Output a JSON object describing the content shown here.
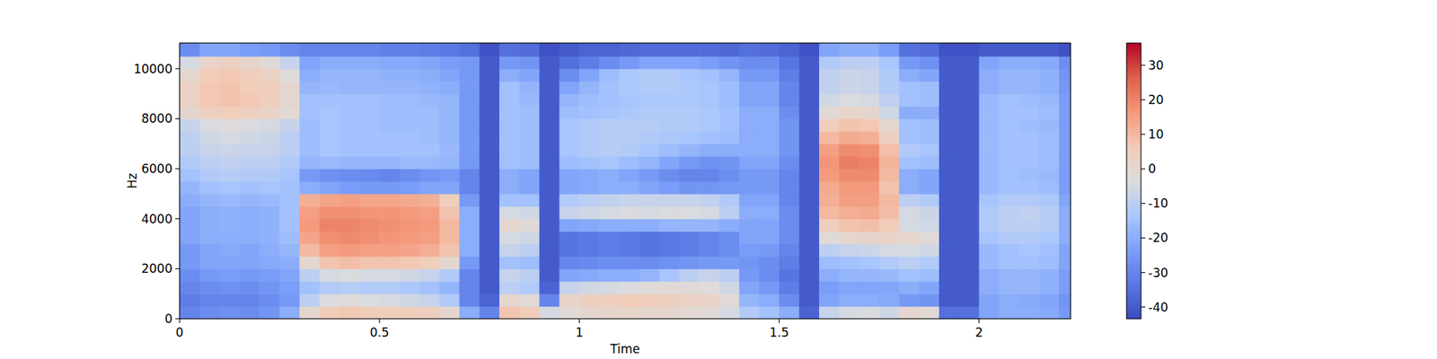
{
  "chart_data": {
    "type": "heatmap",
    "x_label": "Time",
    "y_label": "Hz",
    "xlim": [
      0,
      2.229
    ],
    "ylim": [
      0,
      11025
    ],
    "xticks": [
      0,
      0.5,
      1,
      1.5,
      2
    ],
    "yticks": [
      0,
      2000,
      4000,
      6000,
      8000,
      10000
    ],
    "colorbar_lim": [
      -43.4,
      36.4
    ],
    "colorbar_ticks": [
      -40,
      -30,
      -20,
      -10,
      0,
      10,
      20,
      30
    ],
    "x_edges": [
      0,
      0.05,
      0.1,
      0.15,
      0.2,
      0.25,
      0.3,
      0.35,
      0.4,
      0.45,
      0.5,
      0.55,
      0.6,
      0.65,
      0.7,
      0.75,
      0.8,
      0.85,
      0.9,
      0.95,
      1,
      1.05,
      1.1,
      1.15,
      1.2,
      1.25,
      1.3,
      1.35,
      1.4,
      1.45,
      1.5,
      1.55,
      1.6,
      1.65,
      1.7,
      1.75,
      1.8,
      1.85,
      1.9,
      1.95,
      2,
      2.05,
      2.1,
      2.15,
      2.2,
      2.25
    ],
    "y_edges": [
      0,
      500,
      1000,
      1500,
      2000,
      2500,
      3000,
      3500,
      4000,
      4500,
      5000,
      5500,
      6000,
      6500,
      7000,
      7500,
      8000,
      8500,
      9000,
      9500,
      10000,
      10500,
      11025
    ],
    "cells": [
      [
        -30,
        -32,
        -30,
        -28,
        -25,
        -25,
        -22,
        -22,
        -22,
        -20,
        -18,
        -15,
        -12,
        -10,
        -10,
        -8,
        0,
        3,
        3,
        0,
        -5,
        -28
      ],
      [
        -28,
        -30,
        -28,
        -25,
        -22,
        -22,
        -20,
        -20,
        -20,
        -18,
        -15,
        -12,
        -10,
        -8,
        -6,
        -4,
        4,
        7,
        7,
        6,
        2,
        -22
      ],
      [
        -27,
        -30,
        -27,
        -24,
        -22,
        -21,
        -20,
        -19,
        -19,
        -17,
        -14,
        -11,
        -9,
        -7,
        -5,
        -3,
        5,
        8,
        8,
        7,
        3,
        -22
      ],
      [
        -28,
        -30,
        -28,
        -25,
        -22,
        -22,
        -20,
        -20,
        -20,
        -18,
        -15,
        -12,
        -10,
        -8,
        -6,
        -4,
        4,
        7,
        6,
        5,
        1,
        -24
      ],
      [
        -26,
        -28,
        -26,
        -24,
        -21,
        -20,
        -19,
        -19,
        -19,
        -17,
        -14,
        -12,
        -10,
        -8,
        -7,
        -5,
        2,
        5,
        5,
        3,
        -2,
        -25
      ],
      [
        -20,
        -25,
        -24,
        -22,
        -20,
        -18,
        -16,
        -15,
        -15,
        -15,
        -15,
        -14,
        -12,
        -10,
        -10,
        -8,
        -2,
        0,
        0,
        -3,
        -8,
        -28
      ],
      [
        0,
        -10,
        -15,
        -10,
        0,
        10,
        14,
        16,
        15,
        12,
        -20,
        -25,
        -18,
        -16,
        -16,
        -16,
        -15,
        -15,
        -18,
        -20,
        -22,
        -30
      ],
      [
        6,
        -4,
        -12,
        -5,
        8,
        15,
        18,
        20,
        18,
        14,
        -22,
        -27,
        -17,
        -14,
        -14,
        -14,
        -14,
        -15,
        -17,
        -18,
        -20,
        -30
      ],
      [
        7,
        -3,
        -11,
        -4,
        9,
        16,
        19,
        20,
        18,
        15,
        -24,
        -28,
        -18,
        -15,
        -15,
        -15,
        -15,
        -15,
        -18,
        -18,
        -20,
        -30
      ],
      [
        6,
        -4,
        -12,
        -5,
        8,
        15,
        18,
        19,
        17,
        14,
        -25,
        -29,
        -18,
        -15,
        -15,
        -15,
        -15,
        -15,
        -18,
        -18,
        -20,
        -30
      ],
      [
        5,
        -5,
        -12,
        -5,
        8,
        15,
        17,
        18,
        17,
        14,
        -25,
        -30,
        -18,
        -15,
        -15,
        -16,
        -16,
        -16,
        -18,
        -19,
        -21,
        -31
      ],
      [
        5,
        -6,
        -13,
        -6,
        7,
        14,
        16,
        17,
        16,
        13,
        -24,
        -28,
        -17,
        -15,
        -15,
        -16,
        -16,
        -16,
        -18,
        -19,
        -21,
        -31
      ],
      [
        4,
        -8,
        -15,
        -8,
        5,
        12,
        15,
        16,
        15,
        12,
        -22,
        -26,
        -17,
        -15,
        -16,
        -16,
        -16,
        -17,
        -19,
        -20,
        -22,
        -32
      ],
      [
        0,
        -12,
        -18,
        -12,
        0,
        8,
        10,
        10,
        8,
        5,
        -22,
        -25,
        -18,
        -17,
        -18,
        -18,
        -18,
        -18,
        -20,
        -22,
        -24,
        -33
      ],
      [
        -20,
        -30,
        -30,
        -30,
        -25,
        -20,
        -20,
        -20,
        -20,
        -25,
        -30,
        -30,
        -25,
        -25,
        -25,
        -25,
        -25,
        -25,
        -25,
        -25,
        -25,
        -35
      ],
      [
        -30,
        -38,
        -40,
        -40,
        -40,
        -40,
        -40,
        -40,
        -40,
        -40,
        -40,
        -40,
        -40,
        -40,
        -40,
        -40,
        -40,
        -40,
        -40,
        -40,
        -40,
        -42
      ],
      [
        8,
        0,
        -10,
        -8,
        -15,
        -8,
        -5,
        0,
        -5,
        -15,
        -20,
        -20,
        -15,
        -15,
        -15,
        -15,
        -15,
        -15,
        -15,
        -20,
        -25,
        -35
      ],
      [
        6,
        -2,
        -12,
        -10,
        -16,
        -10,
        -6,
        -2,
        -6,
        -15,
        -22,
        -22,
        -16,
        -16,
        -16,
        -16,
        -16,
        -17,
        -18,
        -22,
        -26,
        -36
      ],
      [
        -5,
        -30,
        -38,
        -40,
        -40,
        -40,
        -40,
        -40,
        -40,
        -40,
        -40,
        -40,
        -40,
        -40,
        -40,
        -40,
        -40,
        -40,
        -40,
        -40,
        -40,
        -42
      ],
      [
        -2,
        2,
        -8,
        -22,
        -30,
        -34,
        -34,
        -22,
        -8,
        -12,
        -22,
        -22,
        -16,
        -14,
        -14,
        -14,
        -16,
        -18,
        -22,
        -28,
        -35,
        -40
      ],
      [
        0,
        4,
        -6,
        -21,
        -29,
        -33,
        -33,
        -21,
        -6,
        -10,
        -21,
        -21,
        -15,
        -12,
        -12,
        -12,
        -15,
        -16,
        -18,
        -22,
        -32,
        -38
      ],
      [
        1,
        5,
        -5,
        -20,
        -28,
        -32,
        -32,
        -20,
        -5,
        -9,
        -20,
        -20,
        -14,
        -11,
        -11,
        -11,
        -14,
        -15,
        -15,
        -16,
        -28,
        -38
      ],
      [
        1,
        6,
        -4,
        -20,
        -28,
        -33,
        -33,
        -20,
        -4,
        -8,
        -20,
        -22,
        -16,
        -12,
        -11,
        -11,
        -13,
        -14,
        -13,
        -13,
        -25,
        -37
      ],
      [
        0,
        5,
        -3,
        -18,
        -28,
        -34,
        -34,
        -20,
        -5,
        -8,
        -22,
        -25,
        -18,
        -14,
        -12,
        -11,
        -12,
        -13,
        -12,
        -12,
        -22,
        -36
      ],
      [
        0,
        4,
        -2,
        -14,
        -27,
        -33,
        -33,
        -18,
        -4,
        -8,
        -24,
        -28,
        -22,
        -16,
        -13,
        -12,
        -12,
        -13,
        -12,
        -12,
        -22,
        -36
      ],
      [
        -1,
        3,
        -2,
        -10,
        -26,
        -32,
        -32,
        -18,
        -4,
        -8,
        -26,
        -30,
        -25,
        -18,
        -14,
        -12,
        -12,
        -13,
        -13,
        -14,
        -22,
        -36
      ],
      [
        -2,
        2,
        -3,
        -8,
        -25,
        -30,
        -30,
        -18,
        -5,
        -9,
        -26,
        -30,
        -27,
        -20,
        -15,
        -13,
        -13,
        -14,
        -14,
        -15,
        -24,
        -36
      ],
      [
        -5,
        -2,
        -6,
        -10,
        -25,
        -28,
        -28,
        -20,
        -10,
        -12,
        -25,
        -28,
        -26,
        -20,
        -16,
        -15,
        -15,
        -16,
        -16,
        -18,
        -26,
        -37
      ],
      [
        -12,
        -18,
        -22,
        -25,
        -26,
        -24,
        -22,
        -22,
        -20,
        -22,
        -25,
        -25,
        -22,
        -20,
        -20,
        -20,
        -20,
        -22,
        -22,
        -25,
        -28,
        -35
      ],
      [
        -15,
        -20,
        -25,
        -28,
        -28,
        -25,
        -22,
        -22,
        -20,
        -22,
        -25,
        -25,
        -22,
        -20,
        -20,
        -20,
        -20,
        -22,
        -22,
        -25,
        -28,
        -36
      ],
      [
        -20,
        -28,
        -32,
        -34,
        -32,
        -30,
        -28,
        -28,
        -28,
        -30,
        -30,
        -30,
        -28,
        -26,
        -26,
        -26,
        -28,
        -30,
        -30,
        -32,
        -34,
        -38
      ],
      [
        -38,
        -40,
        -40,
        -40,
        -40,
        -40,
        -40,
        -40,
        -40,
        -40,
        -40,
        -40,
        -40,
        -40,
        -40,
        -40,
        -40,
        -40,
        -40,
        -40,
        -40,
        -42
      ],
      [
        -8,
        -22,
        -24,
        -20,
        -16,
        -10,
        -2,
        5,
        10,
        12,
        13,
        16,
        17,
        15,
        10,
        5,
        -2,
        -6,
        -9,
        -9,
        -12,
        -22
      ],
      [
        -5,
        -20,
        -22,
        -18,
        -15,
        -8,
        0,
        8,
        12,
        15,
        16,
        19,
        21,
        19,
        13,
        8,
        1,
        -4,
        -7,
        -7,
        -10,
        -20
      ],
      [
        -4,
        -20,
        -22,
        -18,
        -14,
        -7,
        1,
        9,
        13,
        15,
        16,
        19,
        20,
        18,
        12,
        7,
        0,
        -5,
        -8,
        -8,
        -10,
        -20
      ],
      [
        -6,
        -21,
        -22,
        -17,
        -12,
        -5,
        2,
        6,
        9,
        10,
        8,
        10,
        11,
        9,
        4,
        0,
        -6,
        -9,
        -12,
        -12,
        -14,
        -24
      ],
      [
        0,
        -25,
        -20,
        -15,
        -10,
        -5,
        0,
        -5,
        -5,
        -10,
        -20,
        -20,
        -15,
        -12,
        -15,
        -15,
        -20,
        -15,
        -15,
        -20,
        -25,
        -35
      ],
      [
        -2,
        -26,
        -22,
        -16,
        -12,
        -6,
        -2,
        -6,
        -7,
        -12,
        -22,
        -22,
        -16,
        -14,
        -16,
        -16,
        -20,
        -16,
        -16,
        -22,
        -27,
        -36
      ],
      [
        -35,
        -40,
        -40,
        -40,
        -40,
        -40,
        -40,
        -40,
        -40,
        -40,
        -40,
        -40,
        -40,
        -40,
        -40,
        -40,
        -40,
        -40,
        -40,
        -40,
        -40,
        -42
      ],
      [
        -35,
        -40,
        -40,
        -40,
        -40,
        -40,
        -40,
        -40,
        -40,
        -40,
        -40,
        -40,
        -40,
        -40,
        -40,
        -40,
        -40,
        -40,
        -40,
        -40,
        -40,
        -42
      ],
      [
        -22,
        -22,
        -20,
        -20,
        -17,
        -17,
        -14,
        -12,
        -12,
        -14,
        -17,
        -17,
        -17,
        -17,
        -17,
        -17,
        -17,
        -17,
        -20,
        -20,
        -22,
        -40
      ],
      [
        -20,
        -20,
        -18,
        -18,
        -15,
        -15,
        -12,
        -10,
        -10,
        -12,
        -15,
        -15,
        -15,
        -15,
        -15,
        -15,
        -15,
        -15,
        -18,
        -18,
        -20,
        -40
      ],
      [
        -20,
        -21,
        -18,
        -18,
        -15,
        -14,
        -12,
        -10,
        -9,
        -12,
        -15,
        -16,
        -15,
        -15,
        -15,
        -16,
        -15,
        -16,
        -18,
        -18,
        -20,
        -40
      ],
      [
        -21,
        -22,
        -19,
        -19,
        -16,
        -15,
        -13,
        -11,
        -11,
        -13,
        -16,
        -17,
        -16,
        -16,
        -16,
        -17,
        -16,
        -17,
        -19,
        -19,
        -21,
        -40
      ],
      [
        -25,
        -26,
        -24,
        -24,
        -22,
        -22,
        -20,
        -20,
        -20,
        -22,
        -24,
        -24,
        -24,
        -24,
        -24,
        -24,
        -24,
        -24,
        -25,
        -26,
        -28,
        -42
      ]
    ]
  }
}
